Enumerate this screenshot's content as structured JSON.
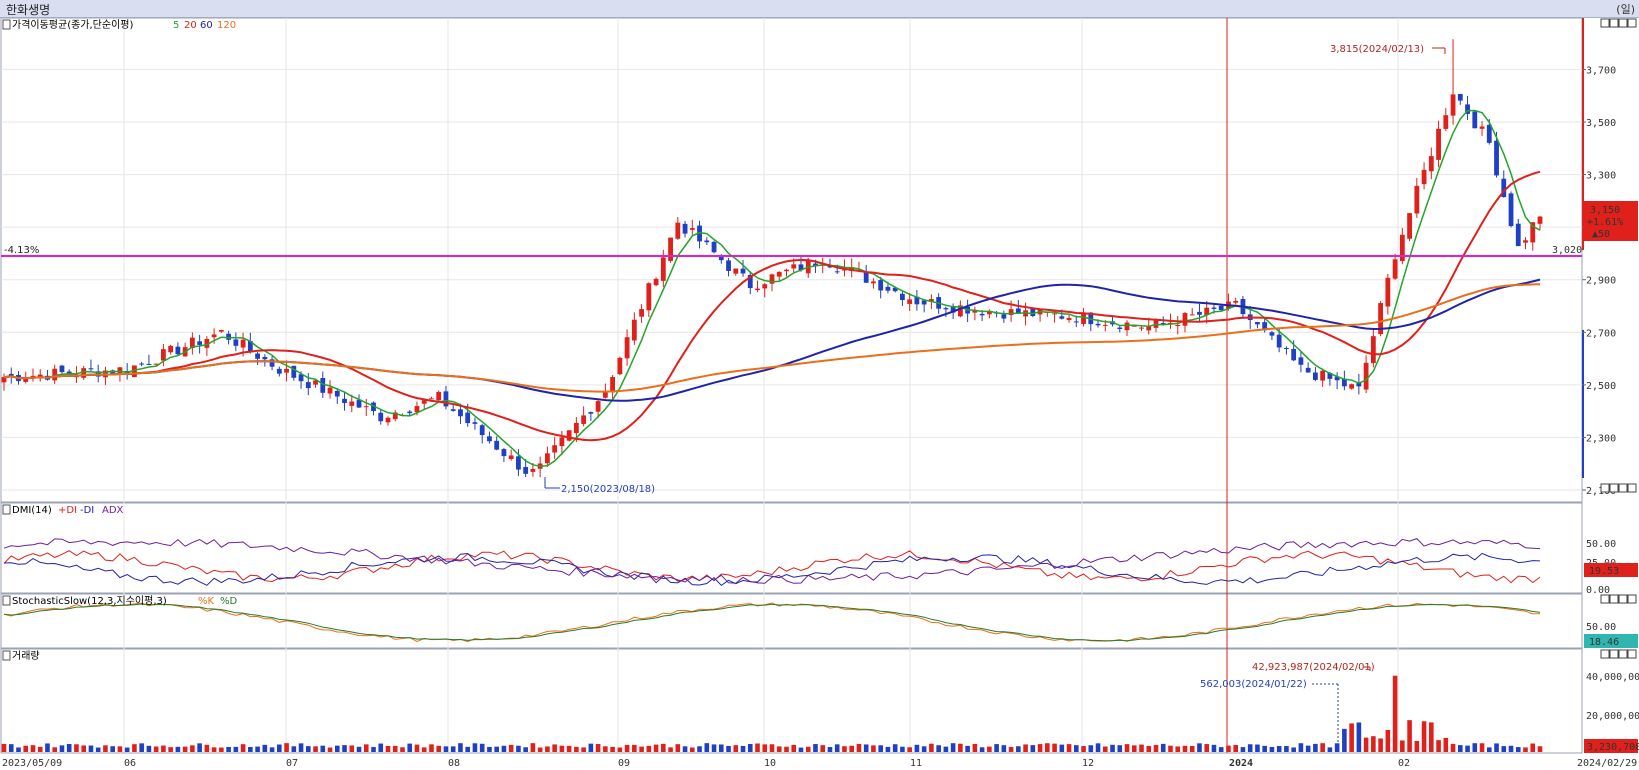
{
  "app": {
    "title": "한화생명",
    "unit": "(일)"
  },
  "colors": {
    "up": "#e0201b",
    "down": "#1f3fc4",
    "ma5": "#22a52a",
    "ma20": "#e0201b",
    "ma60": "#1f24a8",
    "ma120": "#e8701a",
    "hline": "#e020d0",
    "vline": "#e0201b",
    "pdi": "#e0201b",
    "mdi": "#1f24a8",
    "adx": "#6b1f9a",
    "stoK": "#e8701a",
    "stoD": "#2a7a2a",
    "stoFill": "#33e0d8"
  },
  "price_panel": {
    "legend": {
      "prefix": "가격이동평균(종가,단순이평)",
      "ma5": "5",
      "ma20": "20",
      "ma60": "60",
      "ma120": "120"
    },
    "hline_pct": "-4.13%",
    "hline_value": "3,020",
    "current": {
      "price": "3,150",
      "change_pct": "+1.61%",
      "change": "▲50"
    },
    "high_note": "3,815(2024/02/13)",
    "low_note": "2,150(2023/08/18)",
    "y_ticks": [
      "3,700",
      "3,500",
      "3,300",
      "3,100",
      "2,900",
      "2,700",
      "2,500",
      "2,300",
      "2,100"
    ]
  },
  "dmi_panel": {
    "legend": {
      "prefix": "DMI(14)",
      "pdi": "+DI",
      "mdi": "-DI",
      "adx": "ADX"
    },
    "y_ticks": [
      "50.00",
      "0.00"
    ],
    "current": "19.53",
    "partial_tick": "25.00"
  },
  "stoch_panel": {
    "legend": {
      "prefix": "StochasticSlow(12,3,지수이평,3)",
      "k": "%K",
      "d": "%D"
    },
    "y_ticks": [
      "50.00"
    ],
    "current": "18.46"
  },
  "volume_panel": {
    "legend": "거래량",
    "y_ticks": [
      "40,000,000",
      "20,000,000"
    ],
    "current": "3,230,708",
    "high_note": "42,923,987(2024/02/01)",
    "low_note": "562,003(2024/01/22)"
  },
  "x_axis": [
    "2023/05/09",
    "06",
    "07",
    "08",
    "09",
    "10",
    "11",
    "12",
    "2024",
    "02",
    "2024/02/29"
  ],
  "chart_data": {
    "type": "candlestick",
    "title": "한화생명",
    "period": "daily",
    "date_range": [
      "2023/05/09",
      "2024/02/29"
    ],
    "y_range": [
      2100,
      3850
    ],
    "price_close_keypoints": [
      {
        "date": "2023/05/09",
        "close": 2530
      },
      {
        "date": "2023/06/01",
        "close": 2560
      },
      {
        "date": "2023/06/20",
        "close": 2700
      },
      {
        "date": "2023/07/01",
        "close": 2560
      },
      {
        "date": "2023/07/20",
        "close": 2380
      },
      {
        "date": "2023/08/01",
        "close": 2450
      },
      {
        "date": "2023/08/18",
        "close": 2150
      },
      {
        "date": "2023/09/01",
        "close": 2480
      },
      {
        "date": "2023/09/15",
        "close": 3120
      },
      {
        "date": "2023/10/01",
        "close": 2880
      },
      {
        "date": "2023/10/15",
        "close": 2980
      },
      {
        "date": "2023/11/01",
        "close": 2820
      },
      {
        "date": "2023/11/15",
        "close": 2780
      },
      {
        "date": "2023/12/01",
        "close": 2760
      },
      {
        "date": "2023/12/15",
        "close": 2720
      },
      {
        "date": "2024/01/02",
        "close": 2800
      },
      {
        "date": "2024/01/15",
        "close": 2560
      },
      {
        "date": "2024/01/25",
        "close": 2480
      },
      {
        "date": "2024/02/01",
        "close": 3000
      },
      {
        "date": "2024/02/13",
        "close": 3620
      },
      {
        "date": "2024/02/20",
        "close": 3420
      },
      {
        "date": "2024/02/26",
        "close": 3020
      },
      {
        "date": "2024/02/29",
        "close": 3150
      }
    ],
    "high": {
      "value": 3815,
      "date": "2024/02/13"
    },
    "low": {
      "value": 2150,
      "date": "2023/08/18"
    },
    "last": {
      "close": 3150,
      "change": 50,
      "change_pct": 1.61
    },
    "moving_averages": [
      "MA5",
      "MA20",
      "MA60",
      "MA120"
    ],
    "horizontal_line": {
      "value": 3020,
      "label": "-4.13%"
    },
    "volume_max": {
      "value": 42923987,
      "date": "2024/02/01"
    },
    "volume_marker": {
      "value": 562003,
      "date": "2024/01/22"
    },
    "volume_last": 3230708,
    "dmi_last": 19.53,
    "stoch_last": 18.46
  }
}
